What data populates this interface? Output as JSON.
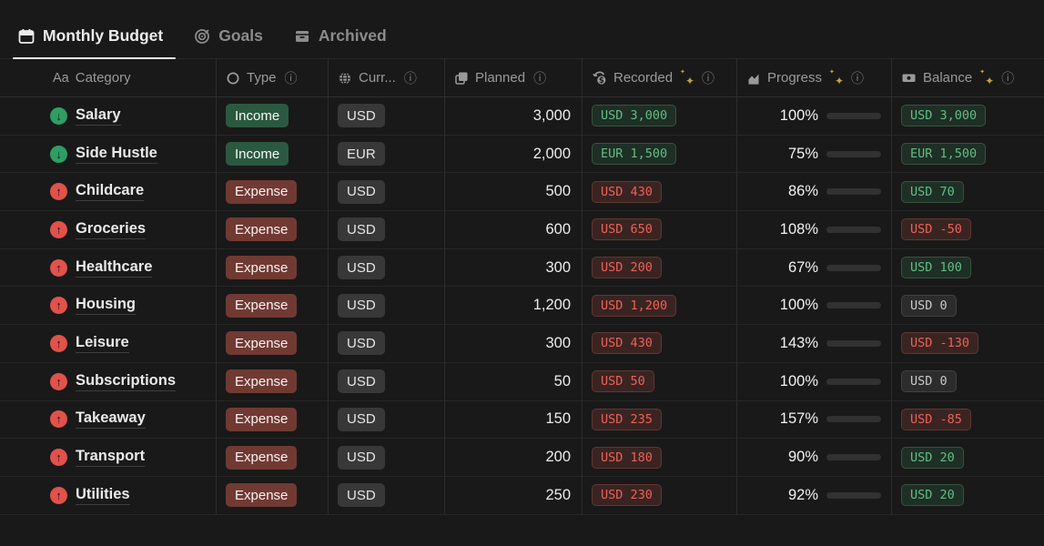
{
  "tabs": [
    {
      "label": "Monthly Budget",
      "icon": "calendar-icon",
      "active": true
    },
    {
      "label": "Goals",
      "icon": "target-icon",
      "active": false
    },
    {
      "label": "Archived",
      "icon": "archive-box-icon",
      "active": false
    }
  ],
  "columns": [
    {
      "label": "Category",
      "icon": "text-property-icon",
      "info": false,
      "sparkle": false
    },
    {
      "label": "Type",
      "icon": "select-circle-icon",
      "info": true,
      "sparkle": false
    },
    {
      "label": "Curr...",
      "icon": "globe-icon",
      "info": true,
      "sparkle": false
    },
    {
      "label": "Planned",
      "icon": "stacked-pages-icon",
      "info": true,
      "sparkle": false
    },
    {
      "label": "Recorded",
      "icon": "currency-exchange-icon",
      "info": true,
      "sparkle": true
    },
    {
      "label": "Progress",
      "icon": "area-chart-icon",
      "info": true,
      "sparkle": true
    },
    {
      "label": "Balance",
      "icon": "banknote-icon",
      "info": true,
      "sparkle": true
    }
  ],
  "rows": [
    {
      "category": "Salary",
      "direction": "income",
      "type": "Income",
      "currency": "USD",
      "planned": "3,000",
      "recorded": "USD 3,000",
      "recorded_tone": "green",
      "progress": "100%",
      "progress_pct": 100,
      "balance": "USD 3,000",
      "balance_tone": "green"
    },
    {
      "category": "Side Hustle",
      "direction": "income",
      "type": "Income",
      "currency": "EUR",
      "planned": "2,000",
      "recorded": "EUR 1,500",
      "recorded_tone": "green",
      "progress": "75%",
      "progress_pct": 75,
      "balance": "EUR 1,500",
      "balance_tone": "green"
    },
    {
      "category": "Childcare",
      "direction": "expense",
      "type": "Expense",
      "currency": "USD",
      "planned": "500",
      "recorded": "USD 430",
      "recorded_tone": "red",
      "progress": "86%",
      "progress_pct": 86,
      "balance": "USD 70",
      "balance_tone": "green"
    },
    {
      "category": "Groceries",
      "direction": "expense",
      "type": "Expense",
      "currency": "USD",
      "planned": "600",
      "recorded": "USD 650",
      "recorded_tone": "red",
      "progress": "108%",
      "progress_pct": 108,
      "balance": "USD -50",
      "balance_tone": "red"
    },
    {
      "category": "Healthcare",
      "direction": "expense",
      "type": "Expense",
      "currency": "USD",
      "planned": "300",
      "recorded": "USD 200",
      "recorded_tone": "red",
      "progress": "67%",
      "progress_pct": 67,
      "balance": "USD 100",
      "balance_tone": "green"
    },
    {
      "category": "Housing",
      "direction": "expense",
      "type": "Expense",
      "currency": "USD",
      "planned": "1,200",
      "recorded": "USD 1,200",
      "recorded_tone": "red",
      "progress": "100%",
      "progress_pct": 100,
      "balance": "USD 0",
      "balance_tone": "grey"
    },
    {
      "category": "Leisure",
      "direction": "expense",
      "type": "Expense",
      "currency": "USD",
      "planned": "300",
      "recorded": "USD 430",
      "recorded_tone": "red",
      "progress": "143%",
      "progress_pct": 143,
      "balance": "USD -130",
      "balance_tone": "red"
    },
    {
      "category": "Subscriptions",
      "direction": "expense",
      "type": "Expense",
      "currency": "USD",
      "planned": "50",
      "recorded": "USD 50",
      "recorded_tone": "red",
      "progress": "100%",
      "progress_pct": 100,
      "balance": "USD 0",
      "balance_tone": "grey"
    },
    {
      "category": "Takeaway",
      "direction": "expense",
      "type": "Expense",
      "currency": "USD",
      "planned": "150",
      "recorded": "USD 235",
      "recorded_tone": "red",
      "progress": "157%",
      "progress_pct": 157,
      "balance": "USD -85",
      "balance_tone": "red"
    },
    {
      "category": "Transport",
      "direction": "expense",
      "type": "Expense",
      "currency": "USD",
      "planned": "200",
      "recorded": "USD 180",
      "recorded_tone": "red",
      "progress": "90%",
      "progress_pct": 90,
      "balance": "USD 20",
      "balance_tone": "green"
    },
    {
      "category": "Utilities",
      "direction": "expense",
      "type": "Expense",
      "currency": "USD",
      "planned": "250",
      "recorded": "USD 230",
      "recorded_tone": "red",
      "progress": "92%",
      "progress_pct": 92,
      "balance": "USD 20",
      "balance_tone": "green"
    }
  ],
  "colors": {
    "background": "#191919",
    "income_pill_bg": "#2b593f",
    "expense_pill_bg": "#703a33",
    "neutral_pill_bg": "#383838",
    "mono_green_text": "#63bd82",
    "mono_red_text": "#ee6157",
    "progress_fill": "#3f9c63",
    "income_icon": "#2f9e63",
    "expense_icon": "#e0524b",
    "sparkle": "#c9a03c"
  }
}
